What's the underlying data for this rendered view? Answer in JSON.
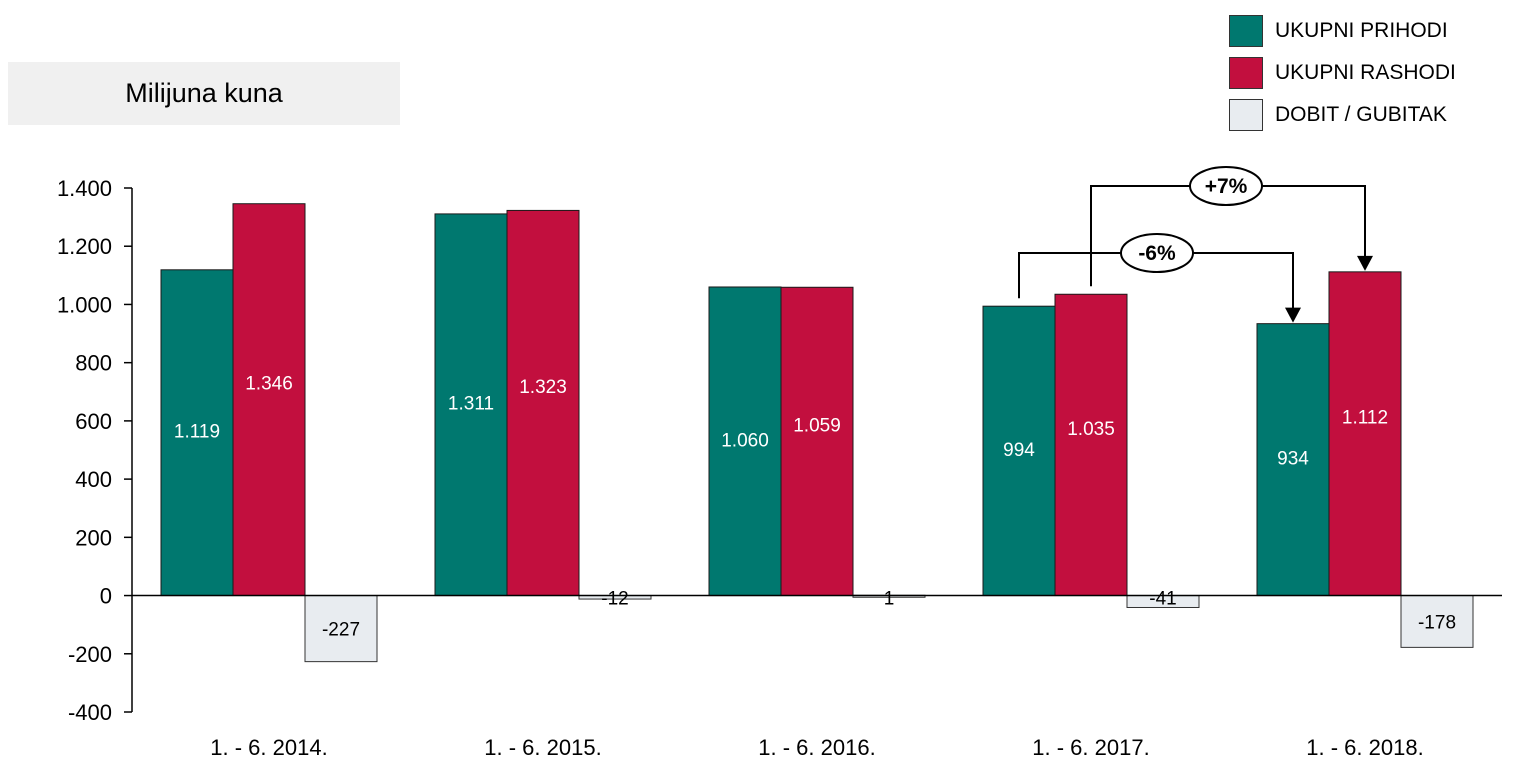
{
  "unit_label": "Milijuna kuna",
  "colors": {
    "prihodi": "#00786f",
    "rashodi": "#c20f3e",
    "dobit": "#e8ecf0",
    "axis": "#000000"
  },
  "chart_data": {
    "type": "bar",
    "ylabel": "Milijuna kuna",
    "ylim": [
      -400,
      1400
    ],
    "yticks": [
      -400,
      -200,
      0,
      200,
      400,
      600,
      800,
      1000,
      1200,
      1400
    ],
    "ytick_labels": [
      "-400",
      "-200",
      "0",
      "200",
      "400",
      "600",
      "800",
      "1.000",
      "1.200",
      "1.400"
    ],
    "categories": [
      "1. - 6. 2014.",
      "1. - 6. 2015.",
      "1. - 6. 2016.",
      "1. - 6. 2017.",
      "1. - 6. 2018."
    ],
    "series": [
      {
        "name": "UKUPNI PRIHODI",
        "values": [
          1119,
          1311,
          1060,
          994,
          934
        ],
        "labels": [
          "1.119",
          "1.311",
          "1.060",
          "994",
          "934"
        ]
      },
      {
        "name": "UKUPNI RASHODI",
        "values": [
          1346,
          1323,
          1059,
          1035,
          1112
        ],
        "labels": [
          "1.346",
          "1.323",
          "1.059",
          "1.035",
          "1.112"
        ]
      },
      {
        "name": "DOBIT / GUBITAK",
        "values": [
          -227,
          -12,
          1,
          -41,
          -178
        ],
        "labels": [
          "-227",
          "-12",
          "1",
          "-41",
          "-178"
        ]
      }
    ],
    "legend_position": "top-right",
    "annotations": [
      {
        "text": "-6%",
        "from": "UKUPNI PRIHODI 1. - 6. 2017.",
        "to": "UKUPNI PRIHODI 1. - 6. 2018."
      },
      {
        "text": "+7%",
        "from": "UKUPNI RASHODI 1. - 6. 2017.",
        "to": "UKUPNI RASHODI 1. - 6. 2018."
      }
    ]
  }
}
